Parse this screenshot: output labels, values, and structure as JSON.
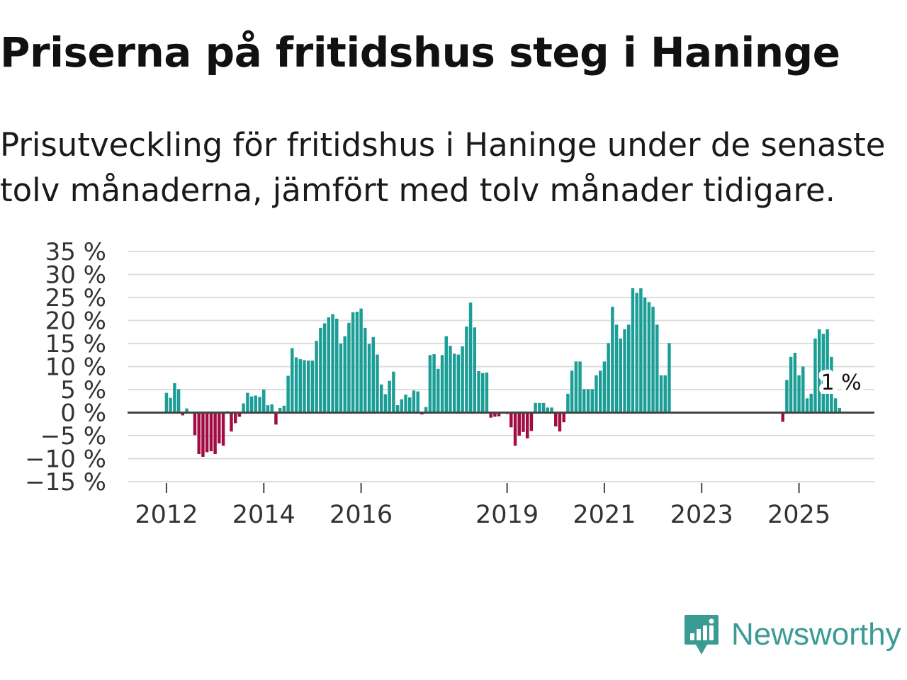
{
  "title": "Priserna på fritidshus steg i Haninge",
  "subtitle": "Prisutveckling för fritidshus i Haninge under de senaste tolv månaderna, jämfört med tolv månader tidigare.",
  "brand": {
    "name": "Newsworthy"
  },
  "colors": {
    "positive": "#1a9e96",
    "negative": "#a10d43",
    "grid": "#dddddd",
    "zero_line": "#444444",
    "text": "#333333",
    "brand": "#3a9b94"
  },
  "chart_data": {
    "type": "bar",
    "title": "Priserna på fritidshus steg i Haninge",
    "xlabel": "",
    "ylabel": "",
    "x_range": [
      2011.2,
      2026.55
    ],
    "ylim": [
      -15,
      35
    ],
    "y_ticks": [
      35,
      30,
      25,
      20,
      15,
      10,
      5,
      0,
      -5,
      -10,
      -15
    ],
    "y_tick_labels": [
      "35 %",
      "30 %",
      "25 %",
      "20 %",
      "15 %",
      "10 %",
      "5 %",
      "0 %",
      "−5 %",
      "−10 %",
      "−15 %"
    ],
    "x_ticks": [
      2012,
      2014,
      2016,
      2019,
      2021,
      2023,
      2025
    ],
    "x_tick_labels": [
      "2012",
      "2014",
      "2016",
      "2019",
      "2021",
      "2023",
      "2025"
    ],
    "annotation": {
      "label": "1 %",
      "x": 2025.75,
      "y": 1
    },
    "series": [
      {
        "name": "Prisutveckling",
        "points": [
          {
            "x": 2012.0,
            "y": 4.3
          },
          {
            "x": 2012.083,
            "y": 3.2
          },
          {
            "x": 2012.167,
            "y": 6.4
          },
          {
            "x": 2012.25,
            "y": 5.1
          },
          {
            "x": 2012.333,
            "y": -0.6
          },
          {
            "x": 2012.417,
            "y": 0.9
          },
          {
            "x": 2012.5,
            "y": 0
          },
          {
            "x": 2012.583,
            "y": -4.9
          },
          {
            "x": 2012.667,
            "y": -9.0
          },
          {
            "x": 2012.75,
            "y": -9.6
          },
          {
            "x": 2012.833,
            "y": -8.6
          },
          {
            "x": 2012.917,
            "y": -8.4
          },
          {
            "x": 2013.0,
            "y": -9.0
          },
          {
            "x": 2013.083,
            "y": -6.7
          },
          {
            "x": 2013.167,
            "y": -7.2
          },
          {
            "x": 2013.25,
            "y": 0.3
          },
          {
            "x": 2013.333,
            "y": -4.1
          },
          {
            "x": 2013.417,
            "y": -2.3
          },
          {
            "x": 2013.5,
            "y": -0.9
          },
          {
            "x": 2013.583,
            "y": 2.0
          },
          {
            "x": 2013.667,
            "y": 4.3
          },
          {
            "x": 2013.75,
            "y": 3.5
          },
          {
            "x": 2013.833,
            "y": 3.7
          },
          {
            "x": 2013.917,
            "y": 3.4
          },
          {
            "x": 2014.0,
            "y": 5.0
          },
          {
            "x": 2014.083,
            "y": 1.6
          },
          {
            "x": 2014.167,
            "y": 1.8
          },
          {
            "x": 2014.25,
            "y": -2.6
          },
          {
            "x": 2014.333,
            "y": 1.0
          },
          {
            "x": 2014.417,
            "y": 1.5
          },
          {
            "x": 2014.5,
            "y": 8.0
          },
          {
            "x": 2014.583,
            "y": 14.0
          },
          {
            "x": 2014.667,
            "y": 12.0
          },
          {
            "x": 2014.75,
            "y": 11.6
          },
          {
            "x": 2014.833,
            "y": 11.4
          },
          {
            "x": 2014.917,
            "y": 11.3
          },
          {
            "x": 2015.0,
            "y": 11.3
          },
          {
            "x": 2015.083,
            "y": 15.6
          },
          {
            "x": 2015.167,
            "y": 18.4
          },
          {
            "x": 2015.25,
            "y": 19.4
          },
          {
            "x": 2015.333,
            "y": 20.7
          },
          {
            "x": 2015.417,
            "y": 21.4
          },
          {
            "x": 2015.5,
            "y": 20.4
          },
          {
            "x": 2015.583,
            "y": 15.0
          },
          {
            "x": 2015.667,
            "y": 16.6
          },
          {
            "x": 2015.75,
            "y": 19.5
          },
          {
            "x": 2015.833,
            "y": 21.8
          },
          {
            "x": 2015.917,
            "y": 21.9
          },
          {
            "x": 2016.0,
            "y": 22.6
          },
          {
            "x": 2016.083,
            "y": 18.4
          },
          {
            "x": 2016.167,
            "y": 14.9
          },
          {
            "x": 2016.25,
            "y": 16.4
          },
          {
            "x": 2016.333,
            "y": 12.6
          },
          {
            "x": 2016.417,
            "y": 6.1
          },
          {
            "x": 2016.5,
            "y": 4.0
          },
          {
            "x": 2016.583,
            "y": 6.9
          },
          {
            "x": 2016.667,
            "y": 8.9
          },
          {
            "x": 2016.75,
            "y": 1.6
          },
          {
            "x": 2016.833,
            "y": 2.9
          },
          {
            "x": 2016.917,
            "y": 3.9
          },
          {
            "x": 2017.0,
            "y": 3.3
          },
          {
            "x": 2017.083,
            "y": 4.8
          },
          {
            "x": 2017.167,
            "y": 4.6
          },
          {
            "x": 2017.25,
            "y": -0.4
          },
          {
            "x": 2017.333,
            "y": 1.2
          },
          {
            "x": 2017.417,
            "y": 12.5
          },
          {
            "x": 2017.5,
            "y": 12.7
          },
          {
            "x": 2017.583,
            "y": 9.5
          },
          {
            "x": 2017.667,
            "y": 12.5
          },
          {
            "x": 2017.75,
            "y": 16.6
          },
          {
            "x": 2017.833,
            "y": 14.5
          },
          {
            "x": 2017.917,
            "y": 12.8
          },
          {
            "x": 2018.0,
            "y": 12.6
          },
          {
            "x": 2018.083,
            "y": 14.4
          },
          {
            "x": 2018.167,
            "y": 18.7
          },
          {
            "x": 2018.25,
            "y": 23.9
          },
          {
            "x": 2018.333,
            "y": 18.5
          },
          {
            "x": 2018.417,
            "y": 9.0
          },
          {
            "x": 2018.5,
            "y": 8.6
          },
          {
            "x": 2018.583,
            "y": 8.7
          },
          {
            "x": 2018.667,
            "y": -1.1
          },
          {
            "x": 2018.75,
            "y": -0.9
          },
          {
            "x": 2018.833,
            "y": -0.8
          },
          {
            "x": 2018.917,
            "y": 0
          },
          {
            "x": 2019.0,
            "y": -0.3
          },
          {
            "x": 2019.083,
            "y": -3.2
          },
          {
            "x": 2019.167,
            "y": -7.2
          },
          {
            "x": 2019.25,
            "y": -5.0
          },
          {
            "x": 2019.333,
            "y": -4.2
          },
          {
            "x": 2019.417,
            "y": -5.6
          },
          {
            "x": 2019.5,
            "y": -4.0
          },
          {
            "x": 2019.583,
            "y": 2.1
          },
          {
            "x": 2019.667,
            "y": 2.1
          },
          {
            "x": 2019.75,
            "y": 2.1
          },
          {
            "x": 2019.833,
            "y": 1.1
          },
          {
            "x": 2019.917,
            "y": 1.1
          },
          {
            "x": 2020.0,
            "y": -3.0
          },
          {
            "x": 2020.083,
            "y": -4.1
          },
          {
            "x": 2020.167,
            "y": -2.1
          },
          {
            "x": 2020.25,
            "y": 4.1
          },
          {
            "x": 2020.333,
            "y": 9.1
          },
          {
            "x": 2020.417,
            "y": 11.1
          },
          {
            "x": 2020.5,
            "y": 11.1
          },
          {
            "x": 2020.583,
            "y": 5.1
          },
          {
            "x": 2020.667,
            "y": 5.1
          },
          {
            "x": 2020.75,
            "y": 5.1
          },
          {
            "x": 2020.833,
            "y": 8.1
          },
          {
            "x": 2020.917,
            "y": 9.1
          },
          {
            "x": 2021.0,
            "y": 11.1
          },
          {
            "x": 2021.083,
            "y": 15.1
          },
          {
            "x": 2021.167,
            "y": 23.0
          },
          {
            "x": 2021.25,
            "y": 19.1
          },
          {
            "x": 2021.333,
            "y": 16.1
          },
          {
            "x": 2021.417,
            "y": 18.1
          },
          {
            "x": 2021.5,
            "y": 19.1
          },
          {
            "x": 2021.583,
            "y": 27.0
          },
          {
            "x": 2021.667,
            "y": 26.0
          },
          {
            "x": 2021.75,
            "y": 27.0
          },
          {
            "x": 2021.833,
            "y": 25.0
          },
          {
            "x": 2021.917,
            "y": 24.0
          },
          {
            "x": 2022.0,
            "y": 23.0
          },
          {
            "x": 2022.083,
            "y": 19.1
          },
          {
            "x": 2022.167,
            "y": 8.1
          },
          {
            "x": 2022.25,
            "y": 8.1
          },
          {
            "x": 2022.333,
            "y": 15.1
          },
          {
            "x": 2024.667,
            "y": -2.0
          },
          {
            "x": 2024.75,
            "y": 7.1
          },
          {
            "x": 2024.833,
            "y": 12.1
          },
          {
            "x": 2024.917,
            "y": 13.0
          },
          {
            "x": 2025.0,
            "y": 8.1
          },
          {
            "x": 2025.083,
            "y": 10.0
          },
          {
            "x": 2025.167,
            "y": 3.1
          },
          {
            "x": 2025.25,
            "y": 4.1
          },
          {
            "x": 2025.333,
            "y": 16.1
          },
          {
            "x": 2025.417,
            "y": 18.1
          },
          {
            "x": 2025.5,
            "y": 17.1
          },
          {
            "x": 2025.583,
            "y": 18.1
          },
          {
            "x": 2025.667,
            "y": 12.1
          },
          {
            "x": 2025.75,
            "y": 3.1
          },
          {
            "x": 2025.833,
            "y": 1.0
          }
        ]
      }
    ]
  }
}
